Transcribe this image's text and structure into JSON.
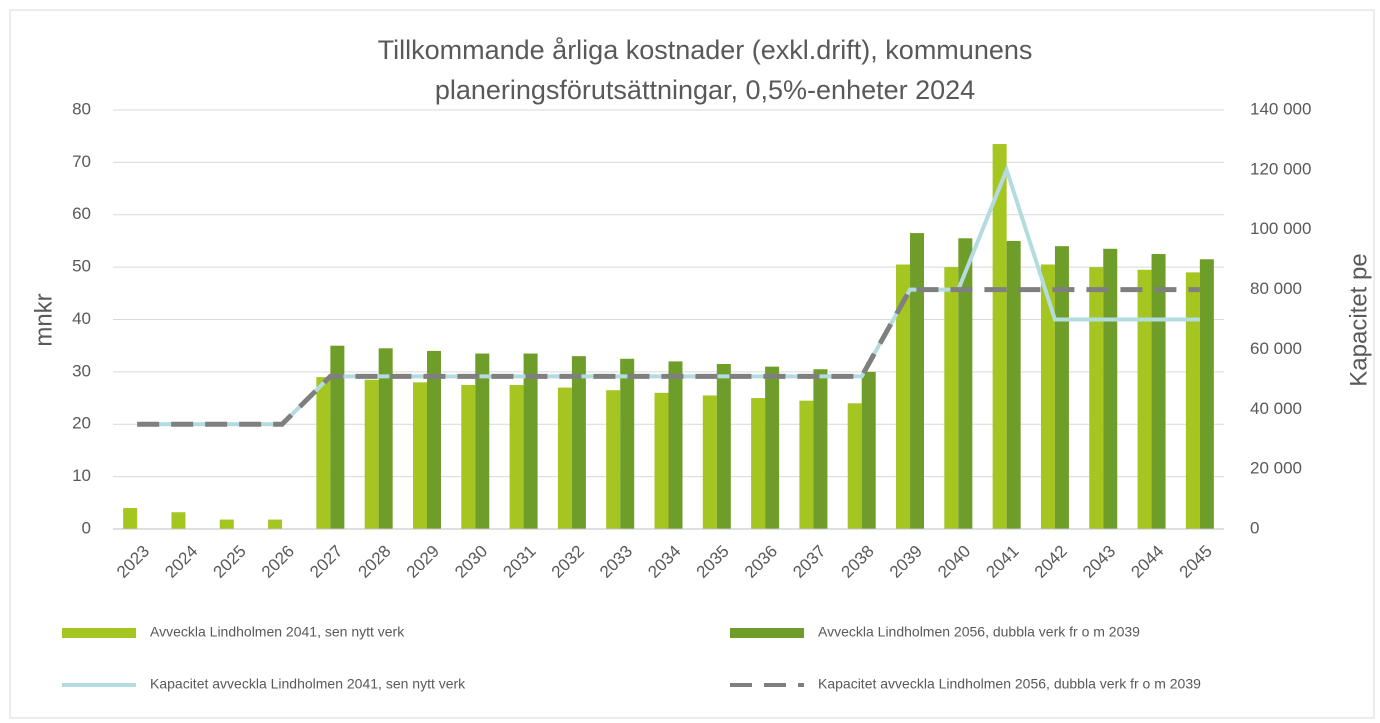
{
  "chart_data": {
    "type": "bar-line",
    "title": [
      "Tillkommande årliga kostnader (exkl.drift), kommunens",
      "planeringsförutsättningar, 0,5%-enheter 2024"
    ],
    "ylabel": "mnkr",
    "y2label": "Kapacitet pe",
    "categories": [
      "2023",
      "2024",
      "2025",
      "2026",
      "2027",
      "2028",
      "2029",
      "2030",
      "2031",
      "2032",
      "2033",
      "2034",
      "2035",
      "2036",
      "2037",
      "2038",
      "2039",
      "2040",
      "2041",
      "2042",
      "2043",
      "2044",
      "2045"
    ],
    "ylim": [
      0,
      80
    ],
    "yticks": [
      0,
      10,
      20,
      30,
      40,
      50,
      60,
      70,
      80
    ],
    "y2lim": [
      0,
      140000
    ],
    "y2ticks": [
      0,
      {
        "value": 20000,
        "label": "20 000"
      },
      {
        "value": 40000,
        "label": "40 000"
      },
      {
        "value": 60000,
        "label": "60 000"
      },
      {
        "value": 80000,
        "label": "80 000"
      },
      {
        "value": 100000,
        "label": "100 000"
      },
      {
        "value": 120000,
        "label": "120 000"
      },
      {
        "value": 140000,
        "label": "140 000"
      }
    ],
    "grid": true,
    "legend": "bottom",
    "series": [
      {
        "name": "Avveckla Lindholmen 2041, sen nytt verk",
        "type": "bar",
        "color": "#a5c521",
        "values": [
          4,
          3.2,
          1.8,
          1.8,
          29,
          28.5,
          28,
          27.5,
          27.5,
          27,
          26.5,
          26,
          25.5,
          25,
          24.5,
          24,
          50.5,
          50,
          73.5,
          50.5,
          50,
          49.5,
          49
        ]
      },
      {
        "name": "Avveckla Lindholmen 2056, dubbla verk fr o m 2039",
        "type": "bar",
        "color": "#6f9d2a",
        "values": [
          null,
          null,
          null,
          null,
          35,
          34.5,
          34,
          33.5,
          33.5,
          33,
          32.5,
          32,
          31.5,
          31,
          30.5,
          30,
          56.5,
          55.5,
          55,
          54,
          53.5,
          52.5,
          51.5
        ]
      },
      {
        "name": "Kapacitet avveckla Lindholmen 2041, sen nytt verk",
        "type": "line",
        "axis": "y2",
        "color": "#b4dbe0",
        "dash": false,
        "values": [
          35000,
          35000,
          35000,
          35000,
          51000,
          51000,
          51000,
          51000,
          51000,
          51000,
          51000,
          51000,
          51000,
          51000,
          51000,
          51000,
          80000,
          80000,
          120000,
          70000,
          70000,
          70000,
          70000
        ]
      },
      {
        "name": "Kapacitet avveckla Lindholmen 2056, dubbla verk fr o m 2039",
        "type": "line",
        "axis": "y2",
        "color": "#7f7f7f",
        "dash": true,
        "values": [
          35000,
          35000,
          35000,
          35000,
          51000,
          51000,
          51000,
          51000,
          51000,
          51000,
          51000,
          51000,
          51000,
          51000,
          51000,
          51000,
          80000,
          80000,
          80000,
          80000,
          80000,
          80000,
          80000
        ]
      }
    ]
  }
}
